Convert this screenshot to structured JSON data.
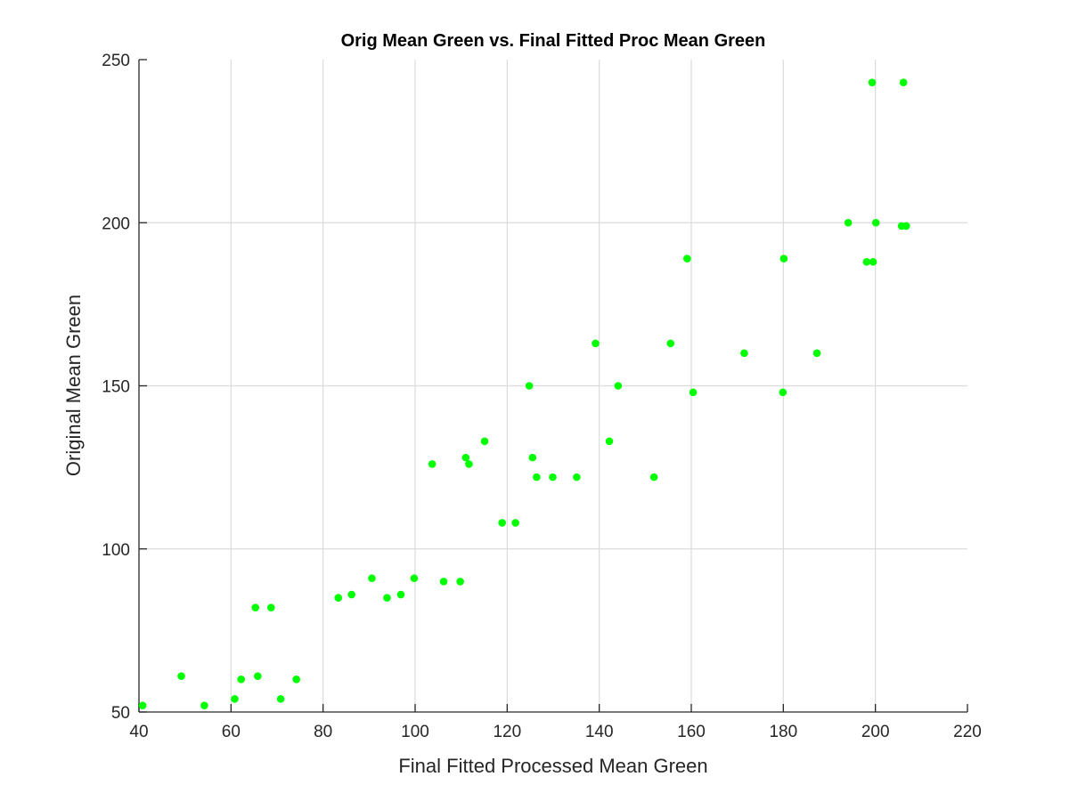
{
  "chart_data": {
    "type": "scatter",
    "title": "Orig Mean Green vs. Final Fitted Proc Mean Green",
    "xlabel": "Final Fitted Processed Mean Green",
    "ylabel": "Original Mean Green",
    "xlim": [
      40,
      220
    ],
    "ylim": [
      50,
      250
    ],
    "xticks": [
      40,
      60,
      80,
      100,
      120,
      140,
      160,
      180,
      200,
      220
    ],
    "yticks": [
      50,
      100,
      150,
      200,
      250
    ],
    "grid": true,
    "legend": "none",
    "marker_color": "#00ff00",
    "series": [
      {
        "points": [
          [
            40.8,
            52
          ],
          [
            49.2,
            61
          ],
          [
            54.2,
            52
          ],
          [
            60.8,
            54
          ],
          [
            62.2,
            60
          ],
          [
            65.8,
            61
          ],
          [
            65.3,
            82
          ],
          [
            68.7,
            82
          ],
          [
            70.8,
            54
          ],
          [
            74.2,
            60
          ],
          [
            83.3,
            85
          ],
          [
            86.2,
            86
          ],
          [
            90.6,
            91
          ],
          [
            93.9,
            85
          ],
          [
            96.9,
            86
          ],
          [
            99.8,
            91
          ],
          [
            103.7,
            126
          ],
          [
            106.2,
            90
          ],
          [
            109.8,
            90
          ],
          [
            111.0,
            128
          ],
          [
            111.7,
            126
          ],
          [
            115.1,
            133
          ],
          [
            118.9,
            108
          ],
          [
            121.8,
            108
          ],
          [
            124.8,
            150
          ],
          [
            125.5,
            128
          ],
          [
            126.4,
            122
          ],
          [
            129.9,
            122
          ],
          [
            135.1,
            122
          ],
          [
            139.2,
            163
          ],
          [
            142.2,
            133
          ],
          [
            144.1,
            150
          ],
          [
            151.9,
            122
          ],
          [
            155.5,
            163
          ],
          [
            159.1,
            189
          ],
          [
            160.4,
            148
          ],
          [
            171.5,
            160
          ],
          [
            179.9,
            148
          ],
          [
            180.1,
            189
          ],
          [
            187.3,
            160
          ],
          [
            194.1,
            200
          ],
          [
            198.1,
            188
          ],
          [
            199.3,
            243
          ],
          [
            199.5,
            188
          ],
          [
            200.1,
            200
          ],
          [
            205.7,
            199
          ],
          [
            206.1,
            243
          ],
          [
            206.7,
            199
          ]
        ]
      }
    ]
  }
}
